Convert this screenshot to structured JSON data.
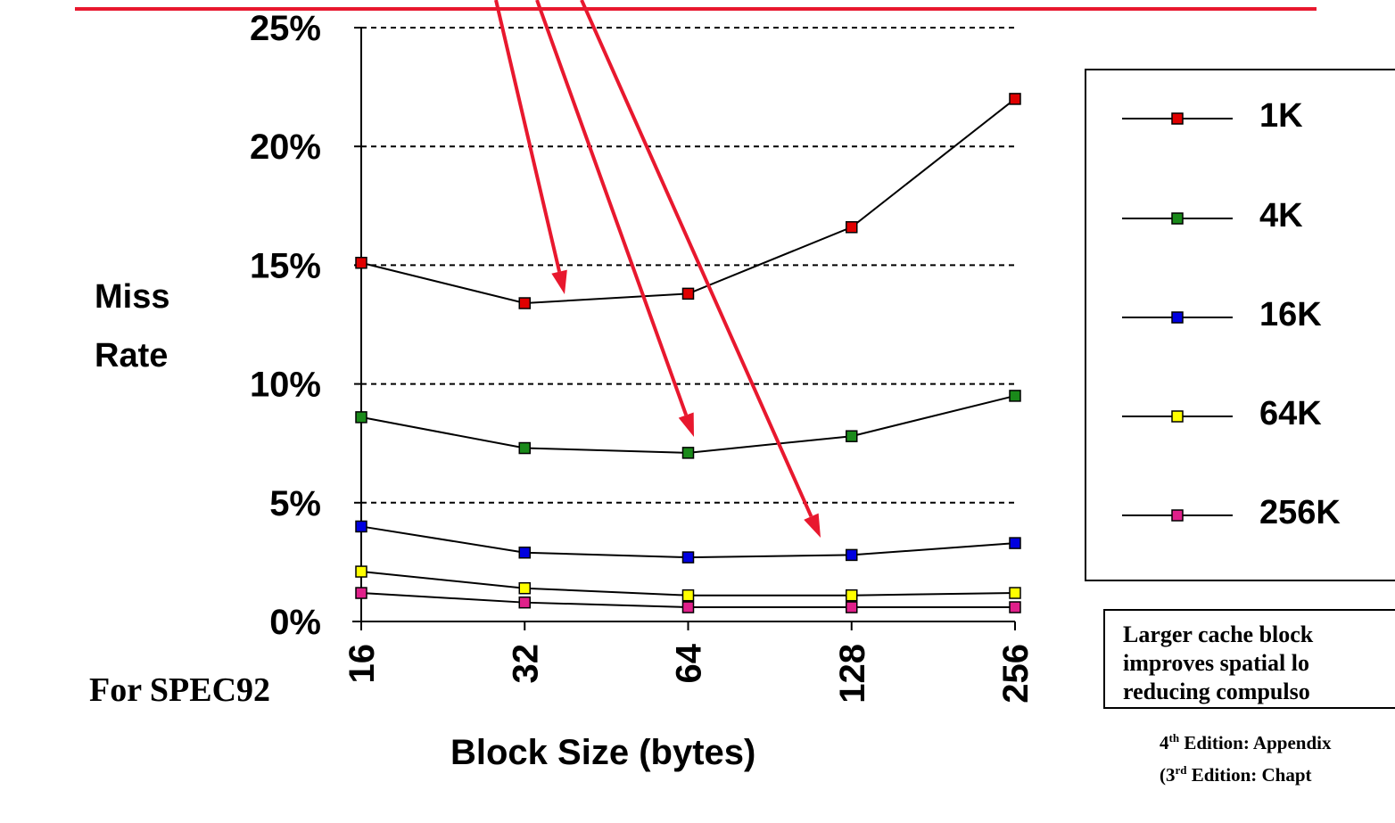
{
  "chart_data": {
    "type": "line",
    "title": "",
    "xlabel": "Block Size (bytes)",
    "ylabel": "Miss Rate",
    "categories": [
      "16",
      "32",
      "64",
      "128",
      "256"
    ],
    "yticks": [
      "0%",
      "5%",
      "10%",
      "15%",
      "20%",
      "25%"
    ],
    "ylim": [
      0,
      25
    ],
    "grid": true,
    "legend_position": "right",
    "series": [
      {
        "name": "1K",
        "color": "#e00000",
        "values": [
          15.1,
          13.4,
          13.8,
          16.6,
          22.0
        ]
      },
      {
        "name": "4K",
        "color": "#1a8a1a",
        "values": [
          8.6,
          7.3,
          7.1,
          7.8,
          9.5
        ]
      },
      {
        "name": "16K",
        "color": "#0000e0",
        "values": [
          4.0,
          2.9,
          2.7,
          2.8,
          3.3
        ]
      },
      {
        "name": "64K",
        "color": "#ffff00",
        "values": [
          2.1,
          1.4,
          1.1,
          1.1,
          1.2
        ]
      },
      {
        "name": "256K",
        "color": "#e0208a",
        "values": [
          1.2,
          0.8,
          0.6,
          0.6,
          0.6
        ]
      }
    ]
  },
  "annotations": {
    "arrow_color": "#e8182e",
    "header_line_color": "#e8182e"
  },
  "spec_note": "For SPEC92",
  "note_box": {
    "line1": "Larger cache block",
    "line2": "improves spatial lo",
    "line3": "reducing compulso"
  },
  "edition": {
    "line1_pre": "4",
    "line1_sup": "th",
    "line1_post": " Edition: Appendix",
    "line2_pre": "(3",
    "line2_sup": "rd",
    "line2_post": " Edition: Chapt"
  }
}
